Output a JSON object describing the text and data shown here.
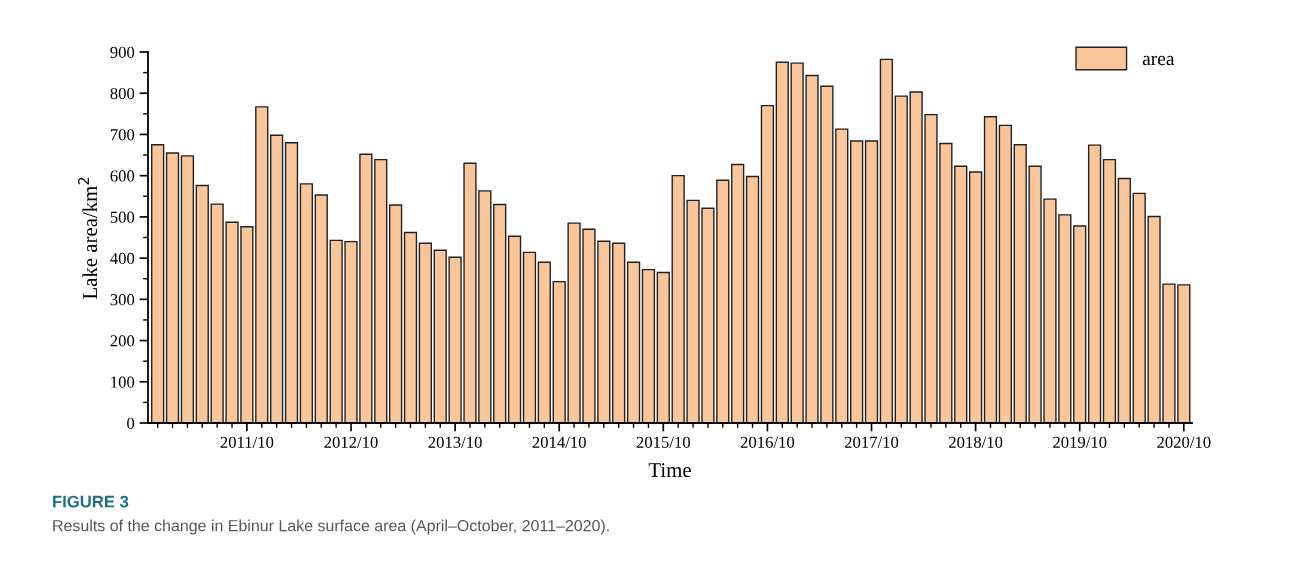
{
  "chart_data": {
    "type": "bar",
    "title": "FIGURE 3",
    "xlabel": "Time",
    "ylabel": "Lake area/km$^{2}$",
    "categories": [
      null,
      null,
      null,
      null,
      null,
      null,
      "2011/10",
      null,
      null,
      null,
      null,
      null,
      null,
      "2012/10",
      null,
      null,
      null,
      null,
      null,
      null,
      "2013/10",
      null,
      null,
      null,
      null,
      null,
      null,
      "2014/10",
      null,
      null,
      null,
      null,
      null,
      null,
      "2015/10",
      null,
      null,
      null,
      null,
      null,
      null,
      "2016/10",
      null,
      null,
      null,
      null,
      null,
      null,
      "2017/10",
      null,
      null,
      null,
      null,
      null,
      null,
      "2018/10",
      null,
      null,
      null,
      null,
      null,
      null,
      "2019/10",
      null,
      null,
      null,
      null,
      null,
      null,
      "2020/10"
    ],
    "series": [
      {
        "name": "area",
        "color": "#f9c59a",
        "values": [
          675,
          655,
          648,
          576,
          531,
          487,
          476,
          767,
          698,
          680,
          580,
          553,
          443,
          440,
          652,
          639,
          529,
          462,
          436,
          419,
          402,
          630,
          563,
          530,
          453,
          414,
          390,
          343,
          485,
          470,
          441,
          436,
          390,
          372,
          365,
          600,
          540,
          521,
          589,
          627,
          598,
          770,
          875,
          873,
          843,
          817,
          713,
          684,
          684,
          882,
          793,
          803,
          748,
          678,
          623,
          609,
          743,
          722,
          675,
          623,
          543,
          505,
          478,
          674,
          639,
          593,
          557,
          501,
          337,
          335
        ]
      }
    ],
    "ylim": [
      0,
      900
    ],
    "yticks": [
      0,
      100,
      200,
      300,
      400,
      500,
      600,
      700,
      800,
      900
    ],
    "grid": false,
    "legend": "top right",
    "annotations": [
      "Results of the change in Ebinur Lake surface area (April–October, 2011–2020)."
    ]
  }
}
